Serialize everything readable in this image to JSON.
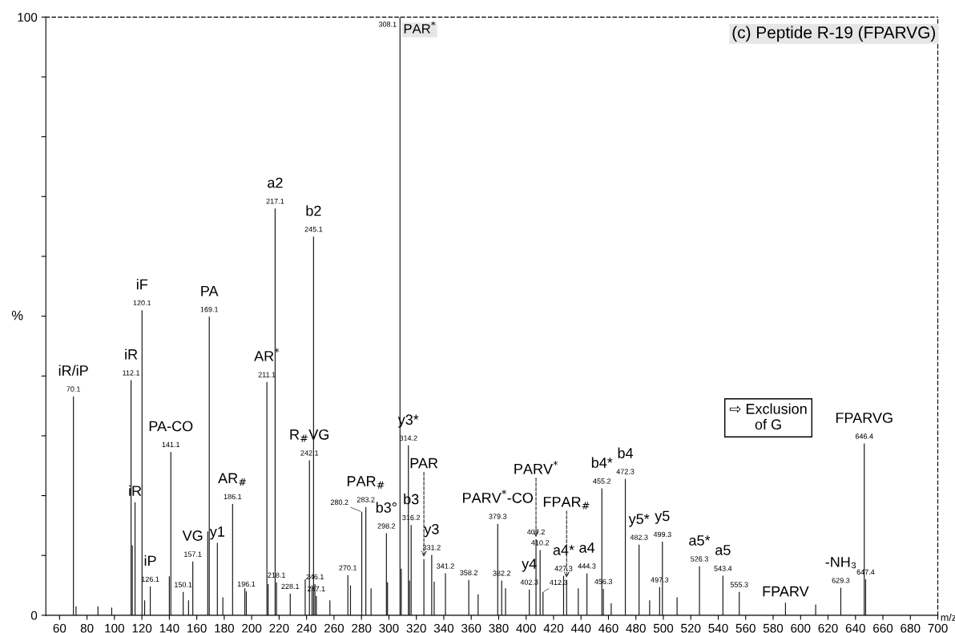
{
  "chart_data": {
    "type": "bar",
    "title": "(c) Peptide R-19 (FPARVG)",
    "xlabel": "m/z",
    "ylabel": "%",
    "x": [
      70.1,
      72,
      88,
      98,
      112.1,
      113,
      115,
      120.1,
      122,
      126.1,
      140,
      141.1,
      150.1,
      154,
      157.1,
      168,
      169.1,
      175,
      179,
      186.1,
      195,
      196.1,
      211.1,
      212,
      217.1,
      218.1,
      228.1,
      239,
      242.1,
      244,
      245.1,
      246.1,
      247.1,
      257,
      270.1,
      272,
      280.2,
      283.2,
      287,
      298.2,
      299,
      308.1,
      309,
      314.2,
      315,
      316.2,
      325.5,
      331.2,
      333,
      341.2,
      358.2,
      365,
      379.3,
      382.2,
      385,
      402.3,
      407.2,
      410.2,
      412.3,
      427.3,
      429.5,
      438,
      444.3,
      455.2,
      456.3,
      462,
      472.3,
      482.3,
      490,
      497.3,
      499.3,
      510,
      526.3,
      543.4,
      555.3,
      589,
      611,
      629.3,
      646.4,
      647.4
    ],
    "values": [
      36.6,
      1.5,
      1.5,
      1.3,
      39.3,
      11.7,
      18.9,
      51.0,
      2.5,
      4.8,
      6.5,
      27.3,
      3.9,
      2.5,
      9.0,
      14.0,
      49.9,
      12.1,
      3.0,
      18.6,
      4.5,
      4.0,
      39.0,
      5.2,
      68.0,
      5.5,
      3.6,
      6.0,
      25.9,
      5.0,
      63.3,
      5.2,
      3.2,
      2.5,
      6.7,
      5.0,
      17.3,
      18.1,
      4.5,
      13.7,
      5.5,
      100,
      7.8,
      28.4,
      5.8,
      15.1,
      9.4,
      10.1,
      5.6,
      7.0,
      5.9,
      3.5,
      15.3,
      5.8,
      4.5,
      4.3,
      12.7,
      10.9,
      3.9,
      6.6,
      5.9,
      4.5,
      7.0,
      21.2,
      4.4,
      2.0,
      22.8,
      11.8,
      2.5,
      4.7,
      12.3,
      3.0,
      8.2,
      6.6,
      3.9,
      2.1,
      1.8,
      4.6,
      28.7,
      6.0
    ],
    "color": "#1a1a1a",
    "xlim": [
      50,
      700
    ],
    "xticks": [
      60,
      80,
      100,
      120,
      140,
      160,
      180,
      200,
      220,
      240,
      260,
      280,
      300,
      320,
      340,
      360,
      380,
      400,
      420,
      440,
      460,
      480,
      500,
      520,
      540,
      560,
      580,
      600,
      620,
      640,
      660,
      680,
      700
    ],
    "ylim": [
      0,
      100
    ],
    "yticks": [
      0,
      {
        "value": 10,
        "label": null
      },
      {
        "value": 20,
        "label": null
      },
      {
        "value": 30,
        "label": null
      },
      {
        "value": 40,
        "label": null
      },
      {
        "value": 50,
        "label": null
      },
      {
        "value": 60,
        "label": null
      },
      {
        "value": 70,
        "label": null
      },
      {
        "value": 80,
        "label": null
      },
      {
        "value": 90,
        "label": null
      },
      100
    ],
    "grid": false,
    "legend": false,
    "annotations": [
      "⇨ Exclusion\nof G",
      {
        "text": "308.1",
        "x": 308.1,
        "y": 100
      },
      {
        "text": "PAR$^{*}$",
        "x": 308.1,
        "y": 100
      },
      {
        "text": "217.1",
        "x": 217.1,
        "y": 68.0
      },
      {
        "text": "a2",
        "x": 217.1,
        "y": 68.0
      },
      {
        "text": "245.1",
        "x": 245.1,
        "y": 63.3
      },
      {
        "text": "b2",
        "x": 245.1,
        "y": 63.3
      },
      {
        "text": "120.1",
        "x": 120.1,
        "y": 51.0
      },
      {
        "text": "iF",
        "x": 120.1,
        "y": 51.0
      },
      {
        "text": "169.1",
        "x": 169.1,
        "y": 49.9
      },
      {
        "text": "PA",
        "x": 169.1,
        "y": 49.9
      },
      {
        "text": "112.1",
        "x": 112.1,
        "y": 39.3
      },
      {
        "text": "iR",
        "x": 112.1,
        "y": 39.3
      },
      {
        "text": "211.1",
        "x": 211.1,
        "y": 39.0
      },
      {
        "text": "AR$^{*}$",
        "x": 211.1,
        "y": 39.0
      },
      {
        "text": "70.1",
        "x": 70.1,
        "y": 36.6
      },
      {
        "text": "iR/iP",
        "x": 70.1,
        "y": 36.6
      },
      {
        "text": "646.4",
        "x": 646.4,
        "y": 28.7
      },
      {
        "text": "FPARVG",
        "x": 646.4,
        "y": 28.7
      },
      {
        "text": "314.2",
        "x": 314.2,
        "y": 28.4
      },
      {
        "text": "y3*",
        "x": 314.2,
        "y": 28.4
      },
      {
        "text": "141.1",
        "x": 141.1,
        "y": 27.3
      },
      {
        "text": "PA-CO",
        "x": 141.1,
        "y": 27.3
      },
      {
        "text": "242.1",
        "x": 242.1,
        "y": 25.9
      },
      {
        "text": "R$_{#}$VG",
        "x": 242.1,
        "y": 25.9
      },
      {
        "text": "472.3",
        "x": 472.3,
        "y": 22.8
      },
      {
        "text": "b4",
        "x": 472.3,
        "y": 22.8
      },
      {
        "text": "455.2",
        "x": 455.2,
        "y": 21.2
      },
      {
        "text": "b4*",
        "x": 455.2,
        "y": 21.2
      },
      {
        "text": "186.1",
        "x": 186.1,
        "y": 18.6
      },
      {
        "text": "AR$_{#}$",
        "x": 186.1,
        "y": 18.6
      },
      {
        "text": "283.2",
        "x": 283.2,
        "y": 18.1
      },
      {
        "text": "PAR$_{#}$",
        "x": 283.2,
        "y": 18.1
      },
      {
        "text": "280.2",
        "x": 280.2,
        "y": 17.3
      },
      {
        "text": "379.3",
        "x": 379.3,
        "y": 15.3
      },
      {
        "text": "PARV$^{*}$-CO",
        "x": 379.3,
        "y": 15.3
      },
      {
        "text": "316.2",
        "x": 316.2,
        "y": 15.1
      },
      {
        "text": "b3",
        "x": 316.2,
        "y": 15.1
      },
      {
        "text": "298.2",
        "x": 298.2,
        "y": 13.7
      },
      {
        "text": "b3°",
        "x": 298.2,
        "y": 13.7
      },
      {
        "text": "407.2",
        "x": 407.2,
        "y": 12.7
      },
      {
        "text": "PARV$^{*}$",
        "x": 407.2,
        "y": 12.7
      },
      {
        "text": "499.3",
        "x": 499.3,
        "y": 12.3
      },
      {
        "text": "y5",
        "x": 499.3,
        "y": 12.3
      },
      {
        "text": "y1",
        "x": 175,
        "y": 12.1
      },
      {
        "text": "482.3",
        "x": 482.3,
        "y": 11.8
      },
      {
        "text": "y5*",
        "x": 482.3,
        "y": 11.8
      },
      {
        "text": "410.2",
        "x": 410.2,
        "y": 10.9
      },
      {
        "text": "331.2",
        "x": 331.2,
        "y": 10.1
      },
      {
        "text": "y3",
        "x": 331.2,
        "y": 10.1
      },
      {
        "text": "157.1",
        "x": 157.1,
        "y": 9.0
      },
      {
        "text": "VG",
        "x": 157.1,
        "y": 9.0
      },
      {
        "text": "526.3",
        "x": 526.3,
        "y": 8.2
      },
      {
        "text": "a5*",
        "x": 526.3,
        "y": 8.2
      },
      {
        "text": "444.3",
        "x": 444.3,
        "y": 7.0
      },
      {
        "text": "a4",
        "x": 444.3,
        "y": 7.0
      },
      {
        "text": "341.2",
        "x": 341.2,
        "y": 7.0
      },
      {
        "text": "270.1",
        "x": 270.1,
        "y": 6.7
      },
      {
        "text": "427.3",
        "x": 427.3,
        "y": 6.6
      },
      {
        "text": "a4*",
        "x": 427.3,
        "y": 6.6
      },
      {
        "text": "543.4",
        "x": 543.4,
        "y": 6.6
      },
      {
        "text": "a5",
        "x": 543.4,
        "y": 6.6
      },
      {
        "text": "647.4",
        "x": 647.4,
        "y": 6.0
      },
      {
        "text": "358.2",
        "x": 358.2,
        "y": 5.9
      },
      {
        "text": "382.2",
        "x": 382.2,
        "y": 5.8
      },
      {
        "text": "218.1",
        "x": 218.1,
        "y": 5.5
      },
      {
        "text": "246.1",
        "x": 246.1,
        "y": 5.2
      },
      {
        "text": "126.1",
        "x": 126.1,
        "y": 4.8
      },
      {
        "text": "iP",
        "x": 126.1,
        "y": 4.8
      },
      {
        "text": "497.3",
        "x": 497.3,
        "y": 4.7
      },
      {
        "text": "629.3",
        "x": 629.3,
        "y": 4.6
      },
      {
        "text": "456.3",
        "x": 456.3,
        "y": 4.4
      },
      {
        "text": "402.3",
        "x": 402.3,
        "y": 4.3
      },
      {
        "text": "y4",
        "x": 402.3,
        "y": 4.3
      },
      {
        "text": "196.1",
        "x": 196.1,
        "y": 4.0
      },
      {
        "text": "150.1",
        "x": 150.1,
        "y": 3.9
      },
      {
        "text": "412.3",
        "x": 412.3,
        "y": 3.9
      },
      {
        "text": "555.3",
        "x": 555.3,
        "y": 3.9
      },
      {
        "text": "228.1",
        "x": 228.1,
        "y": 3.6
      },
      {
        "text": "247.1",
        "x": 247.1,
        "y": 3.2
      },
      {
        "text": "iR",
        "x": 115,
        "y": 18.9
      },
      {
        "text": "PAR",
        "x": 325.5,
        "y": 9.4
      },
      {
        "text": "FPAR$_{#}$",
        "x": 429.5,
        "y": 5.9
      },
      {
        "text": "-NH₃",
        "x": 629.3,
        "y": 4.6
      },
      {
        "text": "FPARV",
        "x": 589,
        "y": 2.1
      }
    ]
  }
}
